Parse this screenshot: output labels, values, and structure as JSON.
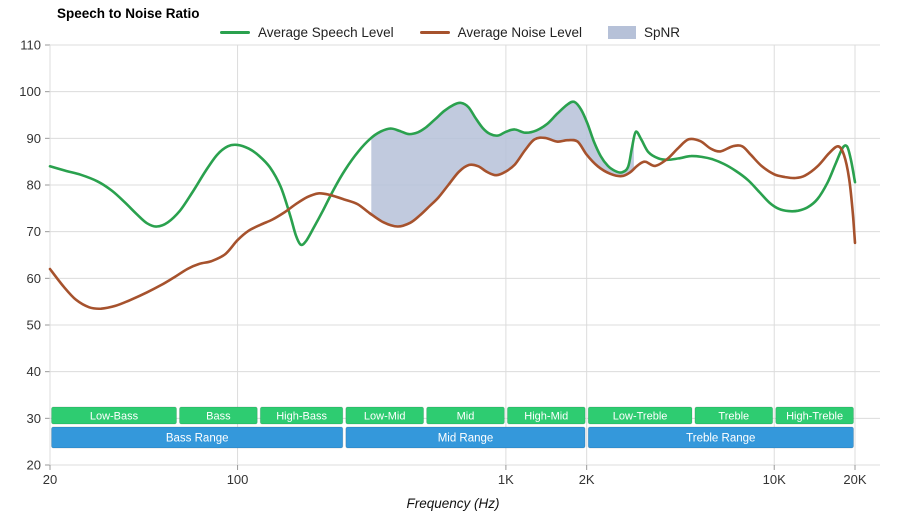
{
  "chart_data": {
    "type": "line",
    "title": "Speech to Noise Ratio",
    "xlabel": "Frequency (Hz)",
    "x_scale": "log",
    "x_range": [
      20,
      20000
    ],
    "y_range": [
      20,
      110
    ],
    "grid": true,
    "legend_position": "top-center",
    "y_ticks": [
      110,
      100,
      90,
      80,
      70,
      60,
      50,
      40,
      30,
      20
    ],
    "x_ticks": [
      {
        "f": 20,
        "label": "20"
      },
      {
        "f": 100,
        "label": "100"
      },
      {
        "f": 1000,
        "label": "1K"
      },
      {
        "f": 2000,
        "label": "2K"
      },
      {
        "f": 10000,
        "label": "10K"
      },
      {
        "f": 20000,
        "label": "20K"
      }
    ],
    "series": [
      {
        "name": "Average Speech Level",
        "color": "#2aa14e",
        "points": [
          [
            20,
            84
          ],
          [
            23,
            83
          ],
          [
            26,
            82.2
          ],
          [
            30,
            80.8
          ],
          [
            34,
            78.8
          ],
          [
            38,
            76.3
          ],
          [
            42,
            73.8
          ],
          [
            46,
            71.8
          ],
          [
            50,
            71.1
          ],
          [
            55,
            72
          ],
          [
            61,
            74.5
          ],
          [
            68,
            78.5
          ],
          [
            76,
            83
          ],
          [
            84,
            86.5
          ],
          [
            92,
            88.3
          ],
          [
            100,
            88.6
          ],
          [
            110,
            87.8
          ],
          [
            120,
            86.3
          ],
          [
            132,
            83.8
          ],
          [
            145,
            79.5
          ],
          [
            157,
            73.5
          ],
          [
            165,
            69.2
          ],
          [
            172,
            67.2
          ],
          [
            180,
            68
          ],
          [
            192,
            70.8
          ],
          [
            208,
            74.5
          ],
          [
            228,
            79
          ],
          [
            252,
            83.3
          ],
          [
            282,
            87.2
          ],
          [
            312,
            89.9
          ],
          [
            340,
            91.4
          ],
          [
            372,
            92.1
          ],
          [
            405,
            91.5
          ],
          [
            435,
            90.9
          ],
          [
            470,
            91.3
          ],
          [
            505,
            92.4
          ],
          [
            545,
            94.1
          ],
          [
            590,
            95.9
          ],
          [
            640,
            97.2
          ],
          [
            680,
            97.6
          ],
          [
            725,
            96.7
          ],
          [
            770,
            94.4
          ],
          [
            820,
            92.2
          ],
          [
            875,
            90.9
          ],
          [
            935,
            90.6
          ],
          [
            1000,
            91.4
          ],
          [
            1080,
            91.9
          ],
          [
            1180,
            91.2
          ],
          [
            1300,
            91.7
          ],
          [
            1425,
            93.1
          ],
          [
            1555,
            95.3
          ],
          [
            1700,
            97.3
          ],
          [
            1800,
            97.8
          ],
          [
            1905,
            96.2
          ],
          [
            2010,
            93.3
          ],
          [
            2125,
            89.4
          ],
          [
            2255,
            86.2
          ],
          [
            2400,
            84.1
          ],
          [
            2555,
            83
          ],
          [
            2705,
            82.7
          ],
          [
            2855,
            83.9
          ],
          [
            2950,
            88
          ],
          [
            3050,
            91.4
          ],
          [
            3200,
            89.7
          ],
          [
            3400,
            87
          ],
          [
            3700,
            85.7
          ],
          [
            4000,
            85.4
          ],
          [
            4400,
            85.7
          ],
          [
            4900,
            86.2
          ],
          [
            5400,
            86
          ],
          [
            5900,
            85.5
          ],
          [
            6500,
            84.5
          ],
          [
            7200,
            83
          ],
          [
            8000,
            81
          ],
          [
            8800,
            78.5
          ],
          [
            9600,
            76.2
          ],
          [
            10400,
            74.9
          ],
          [
            11300,
            74.4
          ],
          [
            12300,
            74.5
          ],
          [
            13300,
            75.2
          ],
          [
            14500,
            77
          ],
          [
            15800,
            80.5
          ],
          [
            17000,
            84.8
          ],
          [
            18000,
            88
          ],
          [
            18700,
            88.2
          ],
          [
            19300,
            85.5
          ],
          [
            20000,
            80.6
          ]
        ]
      },
      {
        "name": "Average Noise Level",
        "color": "#a6522d",
        "points": [
          [
            20,
            62
          ],
          [
            22.5,
            58.2
          ],
          [
            25,
            55.4
          ],
          [
            28,
            53.8
          ],
          [
            31,
            53.5
          ],
          [
            35,
            54.1
          ],
          [
            40,
            55.4
          ],
          [
            46,
            57
          ],
          [
            52,
            58.6
          ],
          [
            58,
            60.2
          ],
          [
            65,
            62
          ],
          [
            72,
            63.1
          ],
          [
            80,
            63.7
          ],
          [
            90,
            65.2
          ],
          [
            100,
            68.2
          ],
          [
            110,
            70.2
          ],
          [
            122,
            71.5
          ],
          [
            135,
            72.6
          ],
          [
            150,
            74.2
          ],
          [
            165,
            75.9
          ],
          [
            182,
            77.4
          ],
          [
            200,
            78.2
          ],
          [
            220,
            77.9
          ],
          [
            250,
            76.9
          ],
          [
            280,
            75.9
          ],
          [
            310,
            74
          ],
          [
            350,
            72
          ],
          [
            395,
            71.1
          ],
          [
            440,
            71.9
          ],
          [
            480,
            73.6
          ],
          [
            520,
            75.5
          ],
          [
            560,
            77.3
          ],
          [
            610,
            80
          ],
          [
            670,
            82.9
          ],
          [
            730,
            84.3
          ],
          [
            790,
            84
          ],
          [
            850,
            82.8
          ],
          [
            920,
            82.1
          ],
          [
            1000,
            82.9
          ],
          [
            1080,
            84.4
          ],
          [
            1180,
            87.5
          ],
          [
            1280,
            89.8
          ],
          [
            1400,
            90.1
          ],
          [
            1550,
            89.3
          ],
          [
            1700,
            89.6
          ],
          [
            1850,
            89.3
          ],
          [
            2000,
            86.5
          ],
          [
            2200,
            84
          ],
          [
            2450,
            82.4
          ],
          [
            2700,
            81.9
          ],
          [
            2900,
            82.7
          ],
          [
            3100,
            84.2
          ],
          [
            3300,
            85
          ],
          [
            3600,
            84.1
          ],
          [
            4000,
            85.6
          ],
          [
            4400,
            88
          ],
          [
            4800,
            89.8
          ],
          [
            5300,
            89.4
          ],
          [
            5800,
            87.8
          ],
          [
            6300,
            87.2
          ],
          [
            7000,
            88.3
          ],
          [
            7600,
            88.3
          ],
          [
            8200,
            86.4
          ],
          [
            9000,
            84
          ],
          [
            10000,
            82.3
          ],
          [
            11000,
            81.7
          ],
          [
            12000,
            81.5
          ],
          [
            13000,
            82
          ],
          [
            14500,
            84
          ],
          [
            16000,
            86.8
          ],
          [
            17300,
            88.3
          ],
          [
            18200,
            86.4
          ],
          [
            19000,
            81.5
          ],
          [
            19600,
            74.5
          ],
          [
            20000,
            67.6
          ]
        ]
      }
    ],
    "spnr": {
      "name": "SpNR",
      "color": "#b6c1d8",
      "range": [
        315,
        3000
      ]
    },
    "bands": {
      "colors": {
        "row1": "#2ecc71",
        "row2": "#3498db",
        "text": "#ffffff"
      },
      "row1": [
        {
          "label": "Low-Bass",
          "f1": 20,
          "f2": 60
        },
        {
          "label": "Bass",
          "f1": 60,
          "f2": 120
        },
        {
          "label": "High-Bass",
          "f1": 120,
          "f2": 250
        },
        {
          "label": "Low-Mid",
          "f1": 250,
          "f2": 500
        },
        {
          "label": "Mid",
          "f1": 500,
          "f2": 1000
        },
        {
          "label": "High-Mid",
          "f1": 1000,
          "f2": 2000
        },
        {
          "label": "Low-Treble",
          "f1": 2000,
          "f2": 5000
        },
        {
          "label": "Treble",
          "f1": 5000,
          "f2": 10000
        },
        {
          "label": "High-Treble",
          "f1": 10000,
          "f2": 20000
        }
      ],
      "row2": [
        {
          "label": "Bass Range",
          "f1": 20,
          "f2": 250
        },
        {
          "label": "Mid Range",
          "f1": 250,
          "f2": 2000
        },
        {
          "label": "Treble Range",
          "f1": 2000,
          "f2": 20000
        }
      ]
    },
    "style": {
      "grid_color": "#dcdcdc",
      "tick_color": "#999999",
      "tick_label_color": "#333333"
    }
  }
}
